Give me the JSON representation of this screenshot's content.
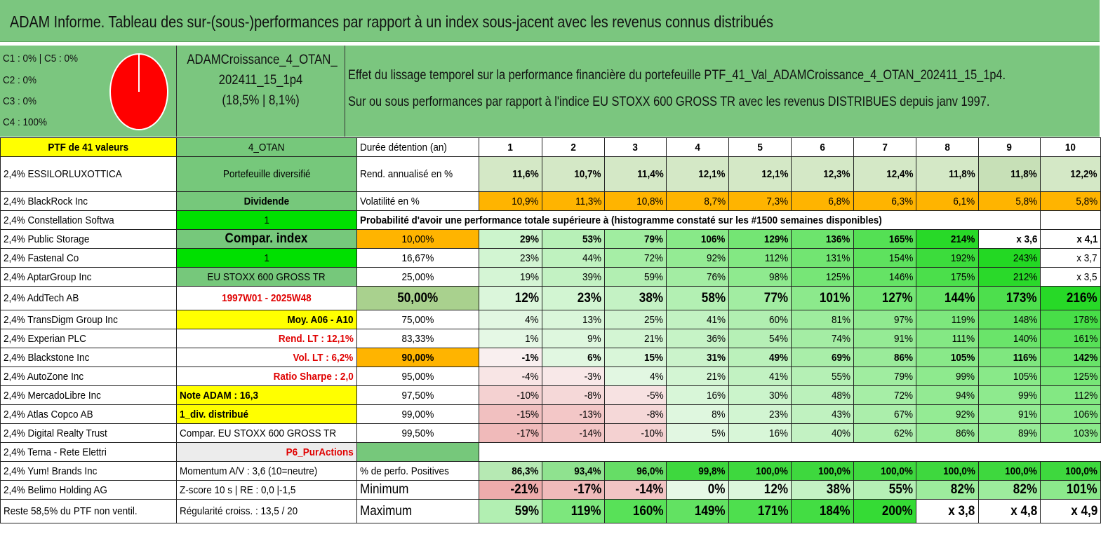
{
  "title": "ADAM Informe. Tableau des sur-(sous-)performances par rapport à un index sous-jacent avec les revenus connus distribués",
  "legend": {
    "items": [
      "C1 : 0% | C5 : 0%",
      "C2 : 0%",
      "C3 : 0%",
      "C4 : 100%"
    ],
    "pie": {
      "fill": "#ff0000",
      "stroke": "#ffffff"
    }
  },
  "portfolio": {
    "name_line1": "ADAMCroissance_4_OTAN_",
    "name_line2": "202411_15_1p4",
    "name_line3": "(18,5% | 8,1%)"
  },
  "description": {
    "line1": "Effet du lissage temporel sur la performance financière du portefeuille PTF_41_Val_ADAMCroissance_4_OTAN_202411_15_1p4.",
    "line2": "Sur ou sous performances par rapport à l'indice EU STOXX 600 GROSS TR avec les revenus DISTRIBUES depuis janv 1997."
  },
  "holdings_header": "PTF de 41 valeurs",
  "holdings": [
    "2,4% ESSILORLUXOTTICA",
    "2,4% BlackRock Inc",
    "2,4% Constellation Softwa",
    "2,4% Public Storage",
    "2,4% Fastenal Co",
    "2,4% AptarGroup Inc",
    "2,4% AddTech AB",
    "2,4% TransDigm Group Inc",
    "2,4% Experian PLC",
    "2,4% Blackstone Inc",
    "2,4% AutoZone Inc",
    "2,4% MercadoLibre Inc",
    "2,4% Atlas Copco AB",
    "2,4% Digital Realty Trust",
    "2,4% Terna - Rete Elettri",
    "2,4% Yum! Brands Inc",
    "2,4% Belimo Holding AG",
    "Reste 58,5% du PTF non ventil."
  ],
  "info_col": [
    "4_OTAN",
    "Portefeuille diversifié",
    "Dividende",
    "1",
    "Compar. index",
    "1",
    "EU STOXX 600 GROSS TR",
    "1997W01 - 2025W48",
    "Moy. A06 - A10",
    "Rend. LT : 12,1%",
    "Vol. LT : 6,2%",
    "Ratio Sharpe : 2,0",
    "Note ADAM : 16,3",
    "1_div. distribué",
    "Compar. EU STOXX 600 GROSS TR",
    "P6_PurActions",
    "Momentum A/V : 3,6 (10=neutre)",
    "Z-score 10 s | RE : 0,0 |-1,5",
    "Régularité croiss. : 13,5 / 20"
  ],
  "years_label": "Durée détention (an)",
  "years": [
    "1",
    "2",
    "3",
    "4",
    "5",
    "6",
    "7",
    "8",
    "9",
    "10"
  ],
  "rend_label": "Rend. annualisé en %",
  "rend": [
    "11,6%",
    "10,7%",
    "11,4%",
    "12,1%",
    "12,1%",
    "12,3%",
    "12,4%",
    "11,8%",
    "11,8%",
    "12,2%"
  ],
  "vol_label": "Volatilité en %",
  "vol": [
    "10,9%",
    "11,3%",
    "10,8%",
    "8,7%",
    "7,3%",
    "6,8%",
    "6,3%",
    "6,1%",
    "5,8%",
    "5,8%"
  ],
  "prob_title": "Probabilité d'avoir une performance totale supérieure à (histogramme constaté sur les #1500 semaines disponibles)",
  "prob_rows": [
    {
      "p": "10,00%",
      "v": [
        "29%",
        "53%",
        "79%",
        "106%",
        "129%",
        "136%",
        "165%",
        "214%",
        "x 3,6",
        "x 4,1"
      ]
    },
    {
      "p": "16,67%",
      "v": [
        "23%",
        "44%",
        "72%",
        "92%",
        "112%",
        "131%",
        "154%",
        "192%",
        "243%",
        "x 3,7"
      ]
    },
    {
      "p": "25,00%",
      "v": [
        "19%",
        "39%",
        "59%",
        "76%",
        "98%",
        "125%",
        "146%",
        "175%",
        "212%",
        "x 3,5"
      ]
    },
    {
      "p": "50,00%",
      "v": [
        "12%",
        "23%",
        "38%",
        "58%",
        "77%",
        "101%",
        "127%",
        "144%",
        "173%",
        "216%"
      ]
    },
    {
      "p": "75,00%",
      "v": [
        "4%",
        "13%",
        "25%",
        "41%",
        "60%",
        "81%",
        "97%",
        "119%",
        "148%",
        "178%"
      ]
    },
    {
      "p": "83,33%",
      "v": [
        "1%",
        "9%",
        "21%",
        "36%",
        "54%",
        "74%",
        "91%",
        "111%",
        "140%",
        "161%"
      ]
    },
    {
      "p": "90,00%",
      "v": [
        "-1%",
        "6%",
        "15%",
        "31%",
        "49%",
        "69%",
        "86%",
        "105%",
        "116%",
        "142%"
      ]
    },
    {
      "p": "95,00%",
      "v": [
        "-4%",
        "-3%",
        "4%",
        "21%",
        "41%",
        "55%",
        "79%",
        "99%",
        "105%",
        "125%"
      ]
    },
    {
      "p": "97,50%",
      "v": [
        "-10%",
        "-8%",
        "-5%",
        "16%",
        "30%",
        "48%",
        "72%",
        "94%",
        "99%",
        "112%"
      ]
    },
    {
      "p": "99,00%",
      "v": [
        "-15%",
        "-13%",
        "-8%",
        "8%",
        "23%",
        "43%",
        "67%",
        "92%",
        "91%",
        "106%"
      ]
    },
    {
      "p": "99,50%",
      "v": [
        "-17%",
        "-14%",
        "-10%",
        "5%",
        "16%",
        "40%",
        "62%",
        "86%",
        "89%",
        "103%"
      ]
    }
  ],
  "pos_label": "% de perfo. Positives",
  "pos": [
    "86,3%",
    "93,4%",
    "96,0%",
    "99,8%",
    "100,0%",
    "100,0%",
    "100,0%",
    "100,0%",
    "100,0%",
    "100,0%"
  ],
  "min_label": "Minimum",
  "min": [
    "-21%",
    "-17%",
    "-14%",
    "0%",
    "12%",
    "38%",
    "55%",
    "82%",
    "82%",
    "101%"
  ],
  "max_label": "Maximum",
  "max": [
    "59%",
    "119%",
    "160%",
    "149%",
    "171%",
    "184%",
    "200%",
    "x 3,8",
    "x 4,8",
    "x 4,9"
  ],
  "colors": {
    "header_green": "#7bc67f",
    "cell_green": "#76c87b",
    "bright_green": "#00e000",
    "yellow": "#ffff00",
    "orange": "#ffb400",
    "alert_red": "#e00000"
  }
}
